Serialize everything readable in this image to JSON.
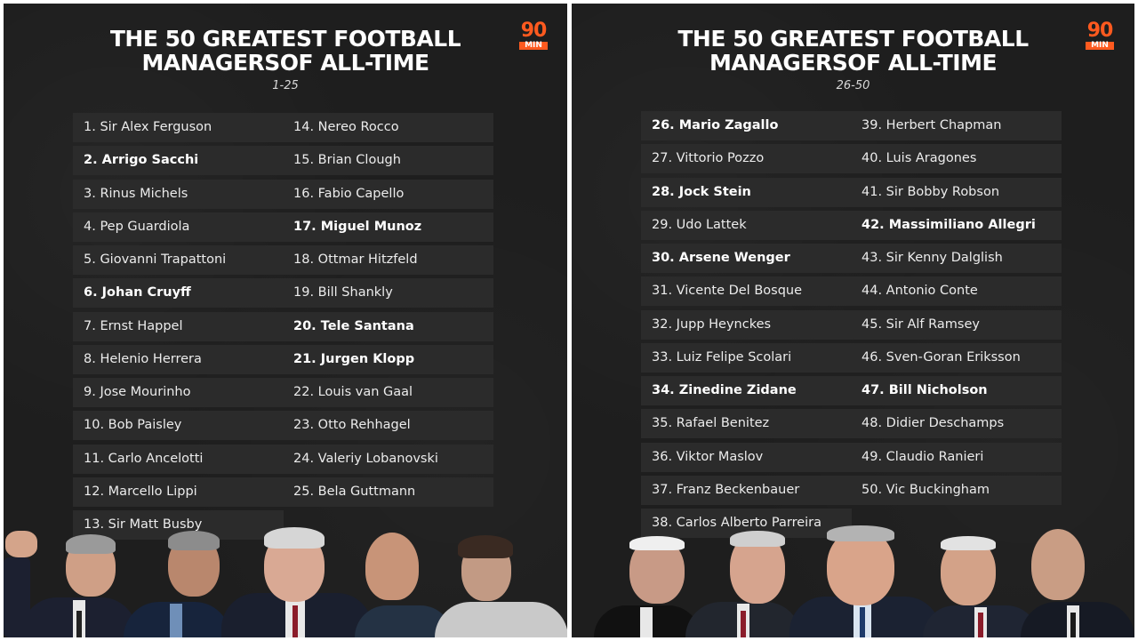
{
  "panels": [
    {
      "title_line1": "THE 50 GREATEST FOOTBALL",
      "title_line2": "MANAGERSOF ALL-TIME",
      "subtitle": "1-25",
      "logo_number": "90",
      "logo_text": "MIN",
      "items": [
        {
          "label": "1. Sir Alex Ferguson",
          "bold": false
        },
        {
          "label": "2. Arrigo Sacchi",
          "bold": true
        },
        {
          "label": "3. Rinus Michels",
          "bold": false
        },
        {
          "label": "4. Pep Guardiola",
          "bold": false
        },
        {
          "label": "5. Giovanni Trapattoni",
          "bold": false
        },
        {
          "label": "6. Johan Cruyff",
          "bold": true
        },
        {
          "label": "7. Ernst Happel",
          "bold": false
        },
        {
          "label": "8. Helenio Herrera",
          "bold": false
        },
        {
          "label": "9. Jose Mourinho",
          "bold": false
        },
        {
          "label": "10. Bob Paisley",
          "bold": false
        },
        {
          "label": "11. Carlo Ancelotti",
          "bold": false
        },
        {
          "label": "12. Marcello Lippi",
          "bold": false
        },
        {
          "label": "13. Sir Matt Busby",
          "bold": false
        },
        {
          "label": "14. Nereo Rocco",
          "bold": false
        },
        {
          "label": "15. Brian Clough",
          "bold": false
        },
        {
          "label": "16. Fabio Capello",
          "bold": false
        },
        {
          "label": "17. Miguel Munoz",
          "bold": true
        },
        {
          "label": "18. Ottmar Hitzfeld",
          "bold": false
        },
        {
          "label": "19. Bill Shankly",
          "bold": false
        },
        {
          "label": "20. Tele Santana",
          "bold": true
        },
        {
          "label": "21. Jurgen Klopp",
          "bold": true
        },
        {
          "label": "22. Louis van Gaal",
          "bold": false
        },
        {
          "label": "23. Otto Rehhagel",
          "bold": false
        },
        {
          "label": "24. Valeriy Lobanovski",
          "bold": false
        },
        {
          "label": "25. Bela Guttmann",
          "bold": false
        }
      ]
    },
    {
      "title_line1": "THE 50 GREATEST FOOTBALL",
      "title_line2": "MANAGERSOF ALL-TIME",
      "subtitle": "26-50",
      "logo_number": "90",
      "logo_text": "MIN",
      "items": [
        {
          "label": "26. Mario Zagallo",
          "bold": true
        },
        {
          "label": "27. Vittorio Pozzo",
          "bold": false
        },
        {
          "label": "28. Jock Stein",
          "bold": true
        },
        {
          "label": "29. Udo Lattek",
          "bold": false
        },
        {
          "label": "30. Arsene Wenger",
          "bold": true
        },
        {
          "label": "31. Vicente Del Bosque",
          "bold": false
        },
        {
          "label": "32. Jupp Heynckes",
          "bold": false
        },
        {
          "label": "33. Luiz Felipe Scolari",
          "bold": false
        },
        {
          "label": "34. Zinedine Zidane",
          "bold": true
        },
        {
          "label": "35. Rafael Benitez",
          "bold": false
        },
        {
          "label": "36. Viktor Maslov",
          "bold": false
        },
        {
          "label": "37. Franz Beckenbauer",
          "bold": false
        },
        {
          "label": "38. Carlos Alberto Parreira",
          "bold": false
        },
        {
          "label": "39. Herbert Chapman",
          "bold": false
        },
        {
          "label": "40. Luis Aragones",
          "bold": false
        },
        {
          "label": "41. Sir Bobby Robson",
          "bold": false
        },
        {
          "label": "42. Massimiliano Allegri",
          "bold": true
        },
        {
          "label": "43. Sir Kenny Dalglish",
          "bold": false
        },
        {
          "label": "44. Antonio Conte",
          "bold": false
        },
        {
          "label": "45. Sir Alf Ramsey",
          "bold": false
        },
        {
          "label": "46. Sven-Goran Eriksson",
          "bold": false
        },
        {
          "label": "47. Bill Nicholson",
          "bold": true
        },
        {
          "label": "48. Didier Deschamps",
          "bold": false
        },
        {
          "label": "49. Claudio Ranieri",
          "bold": false
        },
        {
          "label": "50. Vic Buckingham",
          "bold": false
        }
      ]
    }
  ],
  "colors": {
    "panel_background": "#1e1e1e",
    "row_background": "#2b2b2b",
    "logo_accent": "#ff5a1f",
    "text": "#ffffff"
  }
}
